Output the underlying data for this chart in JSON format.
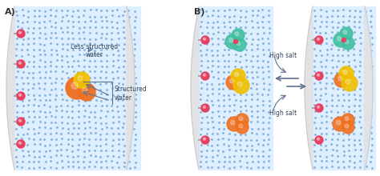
{
  "bg_color": "#ffffff",
  "panel_bg": "#ddeeff",
  "dot_color": "#6699cc",
  "label_A": "A)",
  "label_B": "B)",
  "text_structured": "Structured\nwater",
  "text_less": "Less structured\nwater",
  "text_high_salt_top": "High salt",
  "text_high_salt_bot": "High salt",
  "resin_color": "#e0e2e4",
  "resin_edge": "#cccccc",
  "pink_color": "#e84060",
  "orange_color": "#f07020",
  "yellow_color": "#f0c000",
  "teal_color": "#40c0a0",
  "arrow_color": "#607090",
  "bracket_color": "#607090",
  "dashed_circle_color": "#6699cc"
}
